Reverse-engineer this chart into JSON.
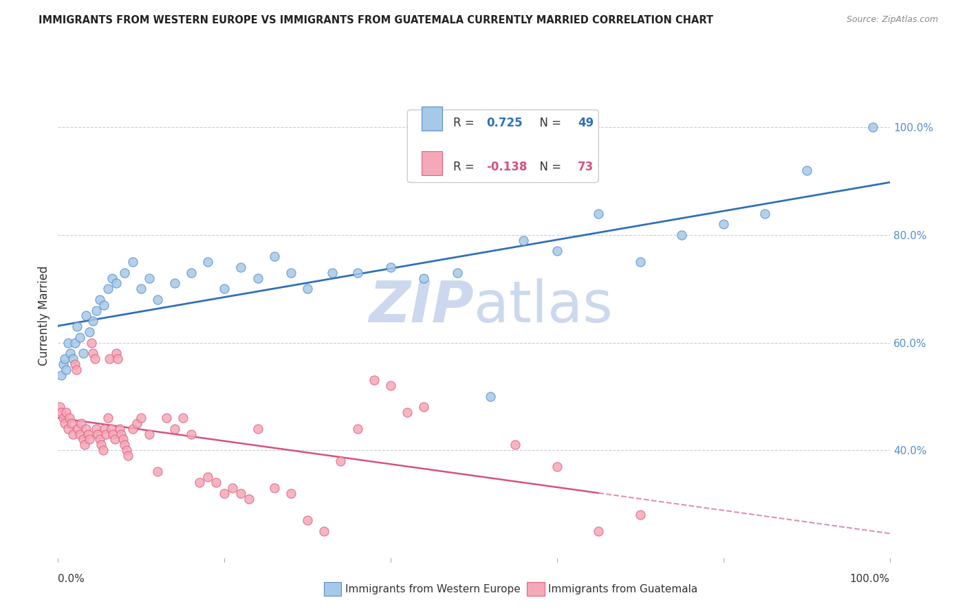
{
  "title": "IMMIGRANTS FROM WESTERN EUROPE VS IMMIGRANTS FROM GUATEMALA CURRENTLY MARRIED CORRELATION CHART",
  "source": "Source: ZipAtlas.com",
  "ylabel": "Currently Married",
  "legend_label1": "Immigrants from Western Europe",
  "legend_label2": "Immigrants from Guatemala",
  "R1": 0.725,
  "N1": 49,
  "R2": -0.138,
  "N2": 73,
  "blue_scatter_color": "#a8c8e8",
  "blue_scatter_edge": "#5590c8",
  "pink_scatter_color": "#f4a8b8",
  "pink_scatter_edge": "#e06080",
  "blue_line_color": "#3070b8",
  "pink_line_color": "#d85080",
  "pink_dashed_color": "#e090a8",
  "watermark_color": "#ccd8ee",
  "grid_color": "#cccccc",
  "right_tick_color": "#5590c8",
  "xlim": [
    0,
    100
  ],
  "ylim": [
    20,
    110
  ],
  "ytick_vals": [
    40,
    60,
    80,
    100
  ],
  "ytick_labels": [
    "40.0%",
    "60.0%",
    "80.0%",
    "100.0%"
  ],
  "blue_x": [
    0.4,
    0.6,
    0.8,
    1.0,
    1.2,
    1.5,
    1.8,
    2.0,
    2.3,
    2.6,
    3.0,
    3.4,
    3.8,
    4.2,
    4.6,
    5.0,
    5.5,
    6.0,
    6.5,
    7.0,
    8.0,
    9.0,
    10.0,
    11.0,
    12.0,
    14.0,
    16.0,
    18.0,
    20.0,
    22.0,
    24.0,
    26.0,
    28.0,
    30.0,
    33.0,
    36.0,
    40.0,
    44.0,
    48.0,
    52.0,
    56.0,
    60.0,
    65.0,
    70.0,
    75.0,
    80.0,
    85.0,
    90.0,
    98.0
  ],
  "blue_y": [
    54.0,
    56.0,
    57.0,
    55.0,
    60.0,
    58.0,
    57.0,
    60.0,
    63.0,
    61.0,
    58.0,
    65.0,
    62.0,
    64.0,
    66.0,
    68.0,
    67.0,
    70.0,
    72.0,
    71.0,
    73.0,
    75.0,
    70.0,
    72.0,
    68.0,
    71.0,
    73.0,
    75.0,
    70.0,
    74.0,
    72.0,
    76.0,
    73.0,
    70.0,
    73.0,
    73.0,
    74.0,
    72.0,
    73.0,
    50.0,
    79.0,
    77.0,
    84.0,
    75.0,
    80.0,
    82.0,
    84.0,
    92.0,
    100.0
  ],
  "pink_x": [
    0.2,
    0.4,
    0.6,
    0.8,
    1.0,
    1.2,
    1.4,
    1.6,
    1.8,
    2.0,
    2.2,
    2.4,
    2.6,
    2.8,
    3.0,
    3.2,
    3.4,
    3.6,
    3.8,
    4.0,
    4.2,
    4.4,
    4.6,
    4.8,
    5.0,
    5.2,
    5.4,
    5.6,
    5.8,
    6.0,
    6.2,
    6.4,
    6.6,
    6.8,
    7.0,
    7.2,
    7.4,
    7.6,
    7.8,
    8.0,
    8.2,
    8.4,
    9.0,
    9.5,
    10.0,
    11.0,
    12.0,
    13.0,
    14.0,
    15.0,
    16.0,
    17.0,
    18.0,
    19.0,
    20.0,
    21.0,
    22.0,
    23.0,
    24.0,
    26.0,
    28.0,
    30.0,
    32.0,
    34.0,
    36.0,
    38.0,
    40.0,
    42.0,
    44.0,
    55.0,
    60.0,
    65.0,
    70.0
  ],
  "pink_y": [
    48.0,
    47.0,
    46.0,
    45.0,
    47.0,
    44.0,
    46.0,
    45.0,
    43.0,
    56.0,
    55.0,
    44.0,
    43.0,
    45.0,
    42.0,
    41.0,
    44.0,
    43.0,
    42.0,
    60.0,
    58.0,
    57.0,
    44.0,
    43.0,
    42.0,
    41.0,
    40.0,
    44.0,
    43.0,
    46.0,
    57.0,
    44.0,
    43.0,
    42.0,
    58.0,
    57.0,
    44.0,
    43.0,
    42.0,
    41.0,
    40.0,
    39.0,
    44.0,
    45.0,
    46.0,
    43.0,
    36.0,
    46.0,
    44.0,
    46.0,
    43.0,
    34.0,
    35.0,
    34.0,
    32.0,
    33.0,
    32.0,
    31.0,
    44.0,
    33.0,
    32.0,
    27.0,
    25.0,
    38.0,
    44.0,
    53.0,
    52.0,
    47.0,
    48.0,
    41.0,
    37.0,
    25.0,
    28.0
  ]
}
